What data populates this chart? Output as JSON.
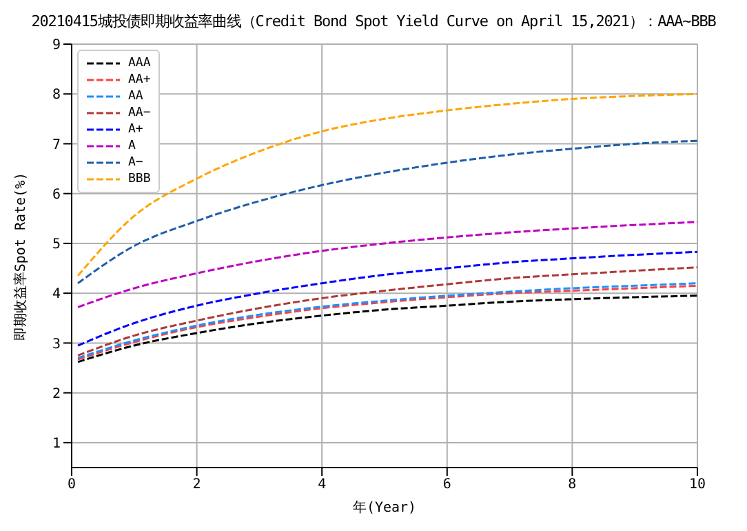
{
  "chart_data": {
    "type": "line",
    "title": "20210415城投债即期收益率曲线（Credit Bond Spot Yield Curve on April 15,2021）：AAA~BBB",
    "xlabel": "年(Year)",
    "ylabel": "即期收益率Spot Rate(%)",
    "x": [
      0.1,
      1,
      2,
      3,
      4,
      5,
      6,
      7,
      8,
      9,
      10
    ],
    "xlim": [
      0,
      10
    ],
    "xticks": [
      0,
      2,
      4,
      6,
      8,
      10
    ],
    "ylim": [
      0.5,
      9
    ],
    "yticks": [
      1,
      2,
      3,
      4,
      5,
      6,
      7,
      8,
      9
    ],
    "grid": true,
    "legend": "top left",
    "line_style": "dashed",
    "marker": "none",
    "series": [
      {
        "name": "AAA",
        "color": "#000000",
        "values": [
          2.62,
          2.95,
          3.2,
          3.4,
          3.55,
          3.67,
          3.75,
          3.83,
          3.88,
          3.92,
          3.95
        ]
      },
      {
        "name": "AA+",
        "color": "#ff4040",
        "values": [
          2.67,
          3.02,
          3.32,
          3.53,
          3.7,
          3.82,
          3.92,
          4.0,
          4.05,
          4.1,
          4.15
        ]
      },
      {
        "name": "AA",
        "color": "#1e8fff",
        "values": [
          2.7,
          3.05,
          3.35,
          3.57,
          3.73,
          3.85,
          3.95,
          4.03,
          4.1,
          4.15,
          4.2
        ]
      },
      {
        "name": "AA−",
        "color": "#b03838",
        "values": [
          2.75,
          3.15,
          3.45,
          3.7,
          3.9,
          4.05,
          4.18,
          4.3,
          4.38,
          4.45,
          4.52
        ]
      },
      {
        "name": "A+",
        "color": "#0000ff",
        "values": [
          2.95,
          3.4,
          3.75,
          4.0,
          4.2,
          4.37,
          4.5,
          4.62,
          4.7,
          4.77,
          4.83
        ]
      },
      {
        "name": "A",
        "color": "#c000c0",
        "values": [
          3.72,
          4.1,
          4.4,
          4.65,
          4.85,
          5.0,
          5.12,
          5.22,
          5.3,
          5.37,
          5.43
        ]
      },
      {
        "name": "A−",
        "color": "#1f5fa8",
        "values": [
          4.2,
          4.95,
          5.45,
          5.85,
          6.17,
          6.42,
          6.62,
          6.78,
          6.9,
          7.0,
          7.06
        ]
      },
      {
        "name": "BBB",
        "color": "#ffa500",
        "values": [
          4.35,
          5.55,
          6.3,
          6.85,
          7.25,
          7.5,
          7.67,
          7.8,
          7.9,
          7.96,
          8.0
        ]
      }
    ]
  }
}
